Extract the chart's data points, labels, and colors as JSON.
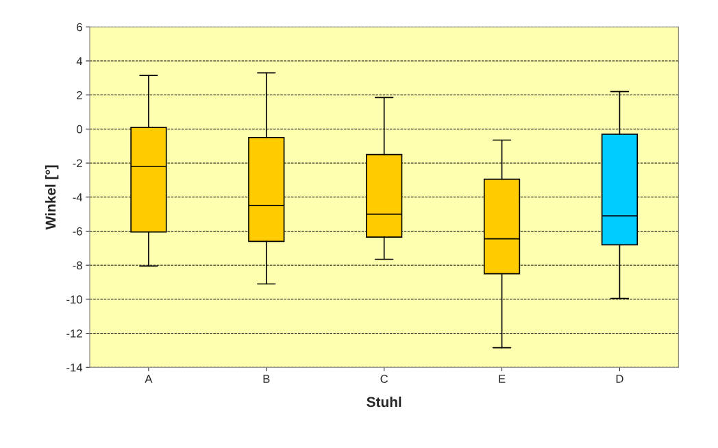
{
  "chart_data": {
    "type": "box",
    "xlabel": "Stuhl",
    "ylabel": "Winkel [°]",
    "categories": [
      "A",
      "B",
      "C",
      "E",
      "D"
    ],
    "boxes": [
      {
        "low": -8.05,
        "q1": -6.05,
        "median": -2.2,
        "q3": 0.1,
        "high": 3.15
      },
      {
        "low": -9.1,
        "q1": -6.6,
        "median": -4.5,
        "q3": -0.5,
        "high": 3.3
      },
      {
        "low": -7.65,
        "q1": -6.35,
        "median": -5.0,
        "q3": -1.5,
        "high": 1.85
      },
      {
        "low": -12.85,
        "q1": -8.5,
        "median": -6.45,
        "q3": -2.95,
        "high": -0.65
      },
      {
        "low": -9.95,
        "q1": -6.8,
        "median": -5.1,
        "q3": -0.3,
        "high": 2.2
      }
    ],
    "colors": [
      "#ffcc00",
      "#ffcc00",
      "#ffcc00",
      "#ffcc00",
      "#00ccff"
    ],
    "ylim": [
      -14,
      6
    ],
    "yticks": [
      -14,
      -12,
      -10,
      -8,
      -6,
      -4,
      -2,
      0,
      2,
      4,
      6
    ],
    "grid": "y"
  }
}
